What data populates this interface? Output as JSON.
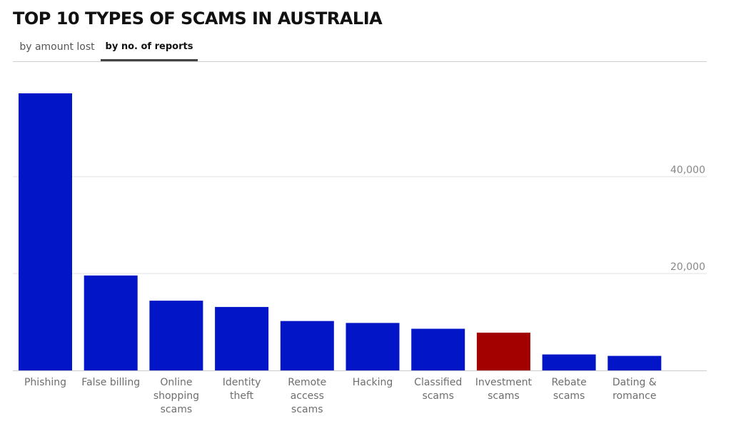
{
  "title": "TOP 10 TYPES OF SCAMS IN AUSTRALIA",
  "tabs": [
    {
      "label": "by amount lost",
      "active": false
    },
    {
      "label": "by no. of reports",
      "active": true
    }
  ],
  "colors": {
    "bar": "#0216c7",
    "highlight": "#a30000",
    "grid": "#e2e2e2",
    "axis": "#cccccc"
  },
  "chart_data": {
    "type": "bar",
    "title": "TOP 10 TYPES OF SCAMS IN AUSTRALIA",
    "xlabel": "",
    "ylabel": "",
    "categories": [
      "Phishing",
      "False billing",
      "Online shopping scams",
      "Identity theft",
      "Remote access scams",
      "Hacking",
      "Classified scams",
      "Investment scams",
      "Rebate scams",
      "Dating & romance"
    ],
    "category_lines": [
      [
        "Phishing"
      ],
      [
        "False billing"
      ],
      [
        "Online",
        "shopping",
        "scams"
      ],
      [
        "Identity",
        "theft"
      ],
      [
        "Remote",
        "access",
        "scams"
      ],
      [
        "Hacking"
      ],
      [
        "Classified",
        "scams"
      ],
      [
        "Investment",
        "scams"
      ],
      [
        "Rebate",
        "scams"
      ],
      [
        "Dating &",
        "romance"
      ]
    ],
    "values": [
      57200,
      19600,
      14400,
      13100,
      10200,
      9800,
      8600,
      7800,
      3300,
      3000
    ],
    "highlight_index": 7,
    "yticks": [
      20000,
      40000
    ],
    "ytick_labels": [
      "20,000",
      "40,000"
    ],
    "ylim": [
      0,
      60000
    ],
    "grid": true,
    "legend": "none"
  }
}
